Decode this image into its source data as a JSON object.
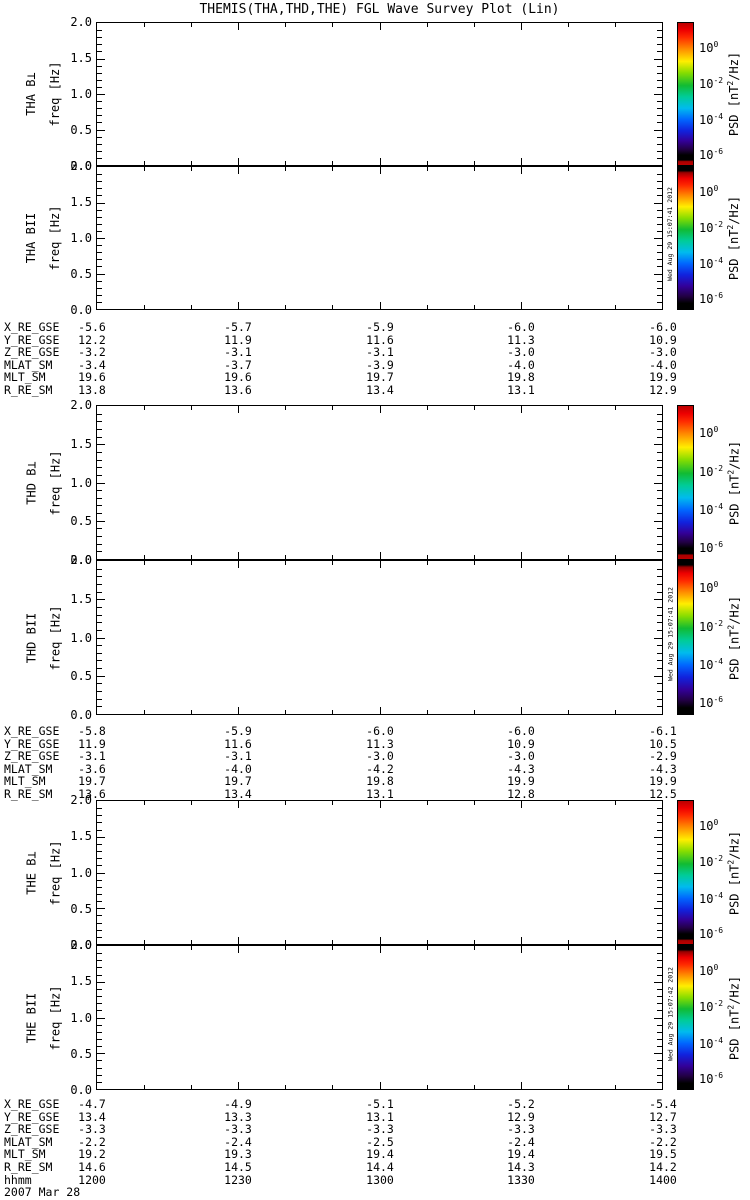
{
  "title": "THEMIS(THA,THD,THE) FGL Wave Survey Plot (Lin)",
  "freq_axis": {
    "label": "freq [Hz]",
    "tick_labels": [
      "2.0",
      "1.5",
      "1.0",
      "0.5",
      "0.0"
    ]
  },
  "time_axis": {
    "row_label": "hhmm",
    "tick_labels": [
      "1200",
      "1230",
      "1300",
      "1330",
      "1400"
    ],
    "date_label": "2007 Mar 28"
  },
  "colorbar": {
    "tick_labels": [
      {
        "base": "10",
        "exp": "0"
      },
      {
        "base": "10",
        "exp": "-2"
      },
      {
        "base": "10",
        "exp": "-4"
      },
      {
        "base": "10",
        "exp": "-6"
      }
    ],
    "axis_label": {
      "pre": "PSD [nT",
      "sup": "2",
      "post": "/Hz]"
    },
    "gradient_perp": [
      [
        0,
        "#bb0000"
      ],
      [
        5,
        "#ee0000"
      ],
      [
        10,
        "#ff2a00"
      ],
      [
        18,
        "#ff8800"
      ],
      [
        27,
        "#ffee00"
      ],
      [
        35,
        "#88dd00"
      ],
      [
        44,
        "#11bb33"
      ],
      [
        52,
        "#00cc99"
      ],
      [
        60,
        "#00bbee"
      ],
      [
        68,
        "#0066ff"
      ],
      [
        76,
        "#1122dd"
      ],
      [
        83,
        "#330099"
      ],
      [
        89,
        "#220044"
      ],
      [
        93,
        "#000000"
      ],
      [
        96.5,
        "#000000"
      ],
      [
        97.5,
        "#aa0000"
      ],
      [
        100,
        "#bb0000"
      ]
    ],
    "gradient_par": [
      [
        0,
        "#000000"
      ],
      [
        2.5,
        "#000000"
      ],
      [
        4,
        "#990000"
      ],
      [
        8,
        "#ee0000"
      ],
      [
        13,
        "#ff2a00"
      ],
      [
        20,
        "#ff8800"
      ],
      [
        28,
        "#ffee00"
      ],
      [
        36,
        "#88dd00"
      ],
      [
        44,
        "#11bb33"
      ],
      [
        52,
        "#00cc99"
      ],
      [
        60,
        "#00bbee"
      ],
      [
        68,
        "#0066ff"
      ],
      [
        76,
        "#1122dd"
      ],
      [
        84,
        "#330099"
      ],
      [
        91,
        "#220044"
      ],
      [
        96,
        "#000000"
      ],
      [
        100,
        "#000000"
      ]
    ]
  },
  "panels": [
    {
      "id": "tha-bperp",
      "name": "THA B⊥",
      "timestamp": null
    },
    {
      "id": "tha-bpar",
      "name": "THA BII",
      "timestamp": "Wed Aug 29 15:07:41 2012"
    },
    {
      "id": "thd-bperp",
      "name": "THD B⊥",
      "timestamp": null
    },
    {
      "id": "thd-bpar",
      "name": "THD BII",
      "timestamp": "Wed Aug 29 15:07:41 2012"
    },
    {
      "id": "the-bperp",
      "name": "THE B⊥",
      "timestamp": null
    },
    {
      "id": "the-bpar",
      "name": "THE BII",
      "timestamp": "Wed Aug 29 15:07:42 2012"
    }
  ],
  "ephemeris_tables": [
    {
      "spacecraft": "THA",
      "rows": [
        {
          "label": "X_RE_GSE",
          "values": [
            "-5.6",
            "-5.7",
            "-5.9",
            "-6.0",
            "-6.0"
          ]
        },
        {
          "label": "Y_RE_GSE",
          "values": [
            "12.2",
            "11.9",
            "11.6",
            "11.3",
            "10.9"
          ]
        },
        {
          "label": "Z_RE_GSE",
          "values": [
            "-3.2",
            "-3.1",
            "-3.1",
            "-3.0",
            "-3.0"
          ]
        },
        {
          "label": "MLAT_SM",
          "values": [
            "-3.4",
            "-3.7",
            "-3.9",
            "-4.0",
            "-4.0"
          ]
        },
        {
          "label": "MLT_SM",
          "values": [
            "19.6",
            "19.6",
            "19.7",
            "19.8",
            "19.9"
          ]
        },
        {
          "label": "R_RE_SM",
          "values": [
            "13.8",
            "13.6",
            "13.4",
            "13.1",
            "12.9"
          ]
        }
      ]
    },
    {
      "spacecraft": "THD",
      "rows": [
        {
          "label": "X_RE_GSE",
          "values": [
            "-5.8",
            "-5.9",
            "-6.0",
            "-6.0",
            "-6.1"
          ]
        },
        {
          "label": "Y_RE_GSE",
          "values": [
            "11.9",
            "11.6",
            "11.3",
            "10.9",
            "10.5"
          ]
        },
        {
          "label": "Z_RE_GSE",
          "values": [
            "-3.1",
            "-3.1",
            "-3.0",
            "-3.0",
            "-2.9"
          ]
        },
        {
          "label": "MLAT_SM",
          "values": [
            "-3.6",
            "-4.0",
            "-4.2",
            "-4.3",
            "-4.3"
          ]
        },
        {
          "label": "MLT_SM",
          "values": [
            "19.7",
            "19.7",
            "19.8",
            "19.9",
            "19.9"
          ]
        },
        {
          "label": "R_RE_SM",
          "values": [
            "13.6",
            "13.4",
            "13.1",
            "12.8",
            "12.5"
          ]
        }
      ]
    },
    {
      "spacecraft": "THE",
      "rows": [
        {
          "label": "X_RE_GSE",
          "values": [
            "-4.7",
            "-4.9",
            "-5.1",
            "-5.2",
            "-5.4"
          ]
        },
        {
          "label": "Y_RE_GSE",
          "values": [
            "13.4",
            "13.3",
            "13.1",
            "12.9",
            "12.7"
          ]
        },
        {
          "label": "Z_RE_GSE",
          "values": [
            "-3.3",
            "-3.3",
            "-3.3",
            "-3.3",
            "-3.3"
          ]
        },
        {
          "label": "MLAT_SM",
          "values": [
            "-2.2",
            "-2.4",
            "-2.5",
            "-2.4",
            "-2.2"
          ]
        },
        {
          "label": "MLT_SM",
          "values": [
            "19.2",
            "19.3",
            "19.4",
            "19.4",
            "19.5"
          ]
        },
        {
          "label": "R_RE_SM",
          "values": [
            "14.6",
            "14.5",
            "14.4",
            "14.3",
            "14.2"
          ]
        }
      ]
    }
  ],
  "chart_data": [
    {
      "type": "heatmap",
      "panel": "THA B⊥",
      "ylabel": "freq [Hz]",
      "ylim": [
        0.0,
        2.0
      ],
      "y_ticks": [
        0.0,
        0.5,
        1.0,
        1.5,
        2.0
      ],
      "x_tick_labels": [
        "1200",
        "1230",
        "1300",
        "1330",
        "1400"
      ],
      "x_date": "2007 Mar 28",
      "colorbar_label": "PSD [nT^2/Hz]",
      "colorbar_tick_values": [
        1,
        0.01,
        0.0001,
        1e-06
      ],
      "values": []
    },
    {
      "type": "heatmap",
      "panel": "THA BII",
      "ylabel": "freq [Hz]",
      "ylim": [
        0.0,
        2.0
      ],
      "y_ticks": [
        0.0,
        0.5,
        1.0,
        1.5,
        2.0
      ],
      "x_tick_labels": [
        "1200",
        "1230",
        "1300",
        "1330",
        "1400"
      ],
      "x_date": "2007 Mar 28",
      "colorbar_label": "PSD [nT^2/Hz]",
      "colorbar_tick_values": [
        1,
        0.01,
        0.0001,
        1e-06
      ],
      "values": []
    },
    {
      "type": "heatmap",
      "panel": "THD B⊥",
      "ylabel": "freq [Hz]",
      "ylim": [
        0.0,
        2.0
      ],
      "y_ticks": [
        0.0,
        0.5,
        1.0,
        1.5,
        2.0
      ],
      "x_tick_labels": [
        "1200",
        "1230",
        "1300",
        "1330",
        "1400"
      ],
      "x_date": "2007 Mar 28",
      "colorbar_label": "PSD [nT^2/Hz]",
      "colorbar_tick_values": [
        1,
        0.01,
        0.0001,
        1e-06
      ],
      "values": []
    },
    {
      "type": "heatmap",
      "panel": "THD BII",
      "ylabel": "freq [Hz]",
      "ylim": [
        0.0,
        2.0
      ],
      "y_ticks": [
        0.0,
        0.5,
        1.0,
        1.5,
        2.0
      ],
      "x_tick_labels": [
        "1200",
        "1230",
        "1300",
        "1330",
        "1400"
      ],
      "x_date": "2007 Mar 28",
      "colorbar_label": "PSD [nT^2/Hz]",
      "colorbar_tick_values": [
        1,
        0.01,
        0.0001,
        1e-06
      ],
      "values": []
    },
    {
      "type": "heatmap",
      "panel": "THE B⊥",
      "ylabel": "freq [Hz]",
      "ylim": [
        0.0,
        2.0
      ],
      "y_ticks": [
        0.0,
        0.5,
        1.0,
        1.5,
        2.0
      ],
      "x_tick_labels": [
        "1200",
        "1230",
        "1300",
        "1330",
        "1400"
      ],
      "x_date": "2007 Mar 28",
      "colorbar_label": "PSD [nT^2/Hz]",
      "colorbar_tick_values": [
        1,
        0.01,
        0.0001,
        1e-06
      ],
      "values": []
    },
    {
      "type": "heatmap",
      "panel": "THE BII",
      "ylabel": "freq [Hz]",
      "ylim": [
        0.0,
        2.0
      ],
      "y_ticks": [
        0.0,
        0.5,
        1.0,
        1.5,
        2.0
      ],
      "x_tick_labels": [
        "1200",
        "1230",
        "1300",
        "1330",
        "1400"
      ],
      "x_date": "2007 Mar 28",
      "colorbar_label": "PSD [nT^2/Hz]",
      "colorbar_tick_values": [
        1,
        0.01,
        0.0001,
        1e-06
      ],
      "values": []
    }
  ]
}
